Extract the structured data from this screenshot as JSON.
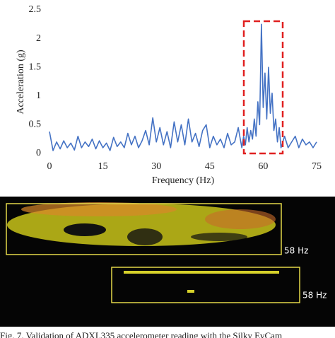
{
  "chart_data": {
    "type": "line",
    "xlabel": "Frequency (Hz)",
    "ylabel": "Acceleration (g)",
    "color": "#4472c4",
    "x": [
      0,
      1,
      2,
      3,
      4,
      5,
      6,
      7,
      8,
      9,
      10,
      11,
      12,
      13,
      14,
      15,
      16,
      17,
      18,
      19,
      20,
      21,
      22,
      23,
      24,
      25,
      26,
      27,
      28,
      29,
      30,
      31,
      32,
      33,
      34,
      35,
      36,
      37,
      38,
      39,
      40,
      41,
      42,
      43,
      44,
      45,
      46,
      47,
      48,
      49,
      50,
      51,
      52,
      53,
      54,
      54.5,
      55,
      55.5,
      56,
      56.5,
      57,
      57.5,
      58,
      58.5,
      59,
      59.5,
      60,
      60.5,
      61,
      61.5,
      62,
      62.5,
      63,
      63.5,
      64,
      64.5,
      65,
      66,
      67,
      68,
      69,
      70,
      71,
      72,
      73,
      74,
      75
    ],
    "values": [
      0.38,
      0.05,
      0.2,
      0.08,
      0.22,
      0.1,
      0.18,
      0.06,
      0.3,
      0.1,
      0.2,
      0.12,
      0.25,
      0.08,
      0.22,
      0.1,
      0.18,
      0.05,
      0.28,
      0.12,
      0.2,
      0.1,
      0.35,
      0.15,
      0.3,
      0.1,
      0.22,
      0.4,
      0.15,
      0.62,
      0.2,
      0.45,
      0.15,
      0.38,
      0.1,
      0.55,
      0.2,
      0.5,
      0.15,
      0.6,
      0.2,
      0.35,
      0.12,
      0.4,
      0.5,
      0.1,
      0.3,
      0.15,
      0.25,
      0.1,
      0.35,
      0.15,
      0.2,
      0.45,
      0.1,
      0.3,
      0.15,
      0.45,
      0.2,
      0.4,
      0.25,
      0.6,
      0.3,
      0.9,
      0.5,
      2.25,
      0.8,
      1.4,
      0.6,
      1.5,
      0.7,
      1.05,
      0.4,
      0.6,
      0.2,
      0.45,
      0.1,
      0.3,
      0.1,
      0.2,
      0.3,
      0.1,
      0.25,
      0.15,
      0.2,
      0.1,
      0.2
    ],
    "xlim": [
      0,
      75
    ],
    "xticks": [
      0,
      15,
      30,
      45,
      60,
      75
    ],
    "ylim": [
      0,
      2.5
    ],
    "yticks": [
      0,
      0.5,
      1,
      1.5,
      2,
      2.5
    ]
  },
  "image": {
    "labels": [
      "58 Hz",
      "58 Hz"
    ]
  },
  "caption": "Fig. 7.   Validation of ADXL335 accelerometer reading with the Silky EvCam"
}
